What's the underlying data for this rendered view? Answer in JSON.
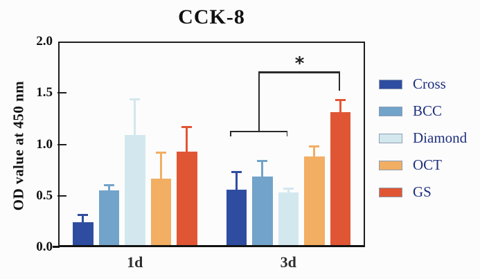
{
  "chart_data": {
    "type": "bar",
    "title": "CCK-8",
    "xlabel": "",
    "ylabel": "OD value at 450 nm",
    "ylim": [
      0,
      2.0
    ],
    "yticks": [
      "0.0",
      "0.5",
      "1.0",
      "1.5",
      "2.0"
    ],
    "grid": false,
    "legend_position": "right",
    "legend_text_color": "#1e2f7d",
    "frame_color": "#1d1d1d",
    "categories": [
      "1d",
      "3d"
    ],
    "series": [
      {
        "name": "Cross",
        "color": "#2f4da0",
        "values": [
          0.24,
          0.56
        ],
        "errors": [
          0.08,
          0.18
        ]
      },
      {
        "name": "BCC",
        "color": "#72a3ca",
        "values": [
          0.55,
          0.69
        ],
        "errors": [
          0.06,
          0.16
        ]
      },
      {
        "name": "Diamond",
        "color": "#d2e8ee",
        "values": [
          1.09,
          0.53
        ],
        "errors": [
          0.36,
          0.05
        ]
      },
      {
        "name": "OCT",
        "color": "#f2ae63",
        "values": [
          0.67,
          0.88
        ],
        "errors": [
          0.26,
          0.11
        ]
      },
      {
        "name": "GS",
        "color": "#e05634",
        "values": [
          0.93,
          1.31
        ],
        "errors": [
          0.25,
          0.13
        ]
      }
    ],
    "annotation": {
      "label": "*",
      "group": "3d",
      "span_series": [
        "Cross",
        "BCC",
        "Diamond"
      ],
      "target_series": "GS",
      "span_bracket_y": 1.13,
      "top_y": 1.71,
      "target_drop_y": 1.52
    }
  }
}
